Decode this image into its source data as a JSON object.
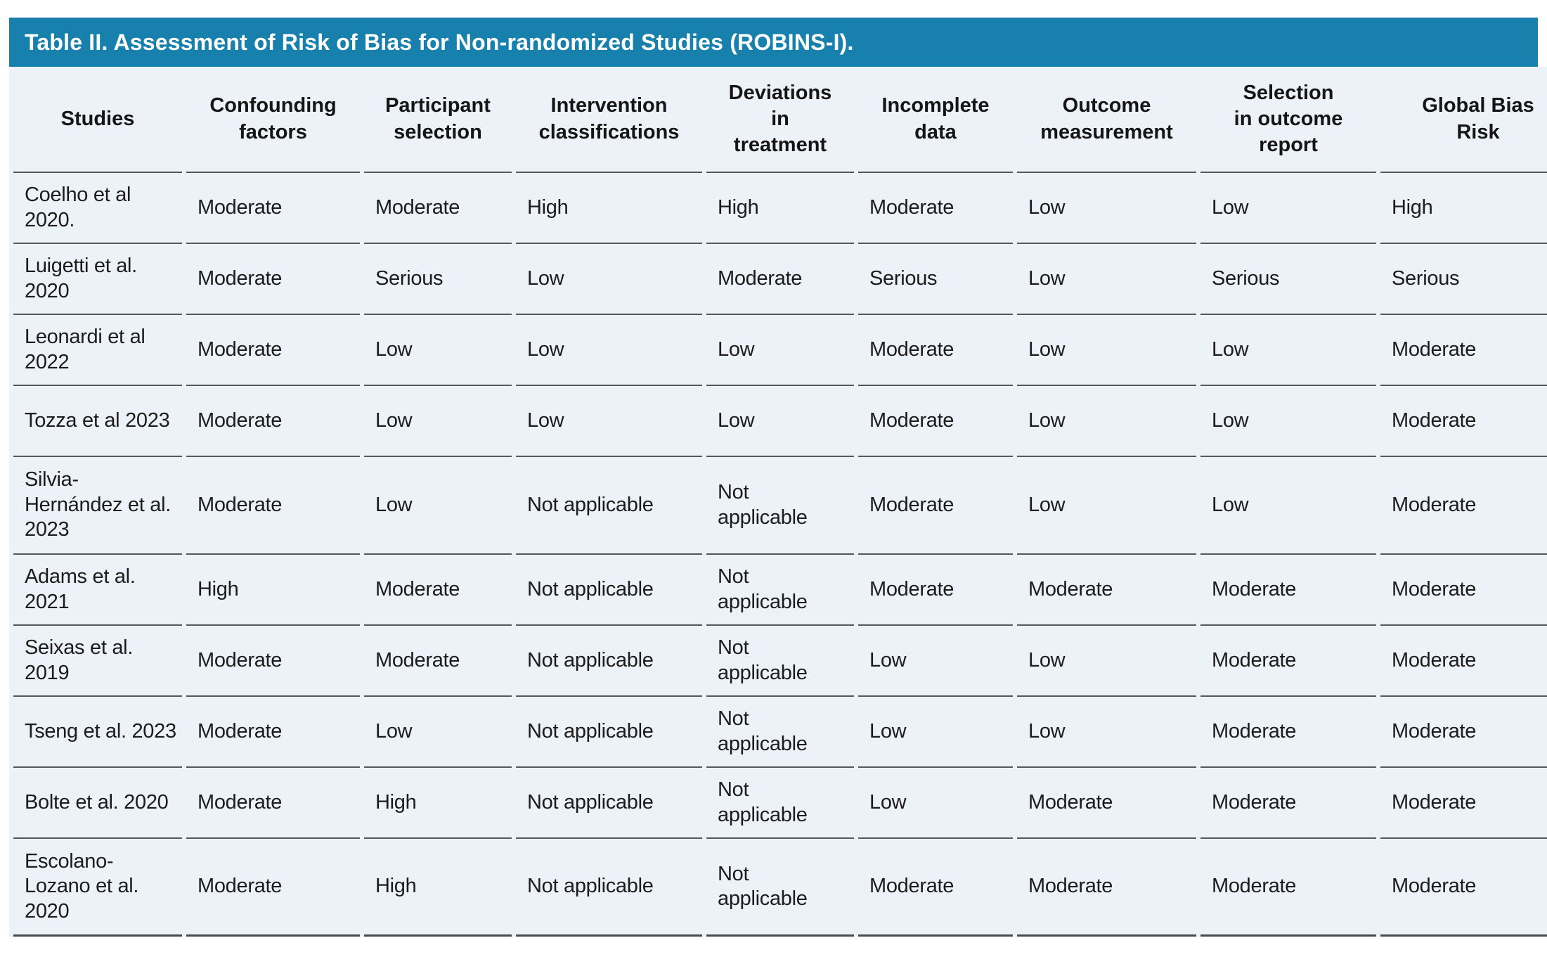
{
  "table": {
    "title": "Table II. Assessment of Risk of Bias for Non-randomized Studies (ROBINS-I).",
    "columns": [
      "Studies",
      "Confounding\nfactors",
      "Participant\nselection",
      "Intervention\nclassifications",
      "Deviations\nin\ntreatment",
      "Incomplete\ndata",
      "Outcome\nmeasurement",
      "Selection\nin outcome\nreport",
      "Global Bias\nRisk"
    ],
    "rows": [
      {
        "study": "Coelho et al 2020.",
        "values": [
          "Moderate",
          "Moderate",
          "High",
          "High",
          "Moderate",
          "Low",
          "Low",
          "High"
        ]
      },
      {
        "study": "Luigetti et al. 2020",
        "values": [
          "Moderate",
          "Serious",
          "Low",
          "Moderate",
          "Serious",
          "Low",
          "Serious",
          "Serious"
        ]
      },
      {
        "study": "Leonardi et al 2022",
        "values": [
          "Moderate",
          "Low",
          "Low",
          "Low",
          "Moderate",
          "Low",
          "Low",
          "Moderate"
        ]
      },
      {
        "study": "Tozza et al 2023",
        "values": [
          "Moderate",
          "Low",
          "Low",
          "Low",
          "Moderate",
          "Low",
          "Low",
          "Moderate"
        ]
      },
      {
        "study": "Silvia-Hernández et al. 2023",
        "values": [
          "Moderate",
          "Low",
          "Not applicable",
          "Not applicable",
          "Moderate",
          "Low",
          "Low",
          "Moderate"
        ]
      },
      {
        "study": "Adams et al. 2021",
        "values": [
          "High",
          "Moderate",
          "Not applicable",
          "Not applicable",
          "Moderate",
          "Moderate",
          "Moderate",
          "Moderate"
        ]
      },
      {
        "study": "Seixas et al. 2019",
        "values": [
          "Moderate",
          "Moderate",
          "Not applicable",
          "Not applicable",
          "Low",
          "Low",
          "Moderate",
          "Moderate"
        ]
      },
      {
        "study": "Tseng et al. 2023",
        "values": [
          "Moderate",
          "Low",
          "Not applicable",
          "Not applicable",
          "Low",
          "Low",
          "Moderate",
          "Moderate"
        ]
      },
      {
        "study": "Bolte et al. 2020",
        "values": [
          "Moderate",
          "High",
          "Not applicable",
          "Not applicable",
          "Low",
          "Moderate",
          "Moderate",
          "Moderate"
        ]
      },
      {
        "study": "Escolano-Lozano et al. 2020",
        "values": [
          "Moderate",
          "High",
          "Not applicable",
          "Not applicable",
          "Moderate",
          "Moderate",
          "Moderate",
          "Moderate"
        ]
      }
    ],
    "colors": {
      "title_bar": "#1780ad",
      "title_text": "#ffffff",
      "body_background": "#edf1f8",
      "row_line": "#54575d",
      "text": "#1c1c1c"
    }
  }
}
